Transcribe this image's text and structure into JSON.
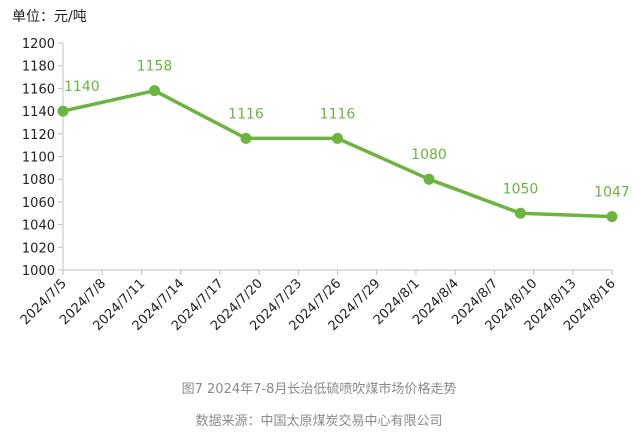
{
  "unit_label": "单位：元/吨",
  "caption": "图7  2024年7-8月长治低硫喷吹煤市场价格走势",
  "source": "数据来源：中国太原煤炭交易中心有限公司",
  "chart_data": {
    "type": "line",
    "title": "",
    "xlabel": "",
    "ylabel": "",
    "ylim": [
      1000,
      1200
    ],
    "ytick_step": 20,
    "grid": false,
    "legend": "none",
    "line_color": "#6db33f",
    "categories": [
      "2024/7/5",
      "2024/7/8",
      "2024/7/11",
      "2024/7/14",
      "2024/7/17",
      "2024/7/20",
      "2024/7/23",
      "2024/7/26",
      "2024/7/29",
      "2024/8/1",
      "2024/8/4",
      "2024/8/7",
      "2024/8/10",
      "2024/8/13",
      "2024/8/16"
    ],
    "points": [
      {
        "date": "2024/7/5",
        "value": 1140
      },
      {
        "date": "2024/7/12",
        "value": 1158
      },
      {
        "date": "2024/7/19",
        "value": 1116
      },
      {
        "date": "2024/7/26",
        "value": 1116
      },
      {
        "date": "2024/8/2",
        "value": 1080
      },
      {
        "date": "2024/8/9",
        "value": 1050
      },
      {
        "date": "2024/8/16",
        "value": 1047
      }
    ]
  }
}
